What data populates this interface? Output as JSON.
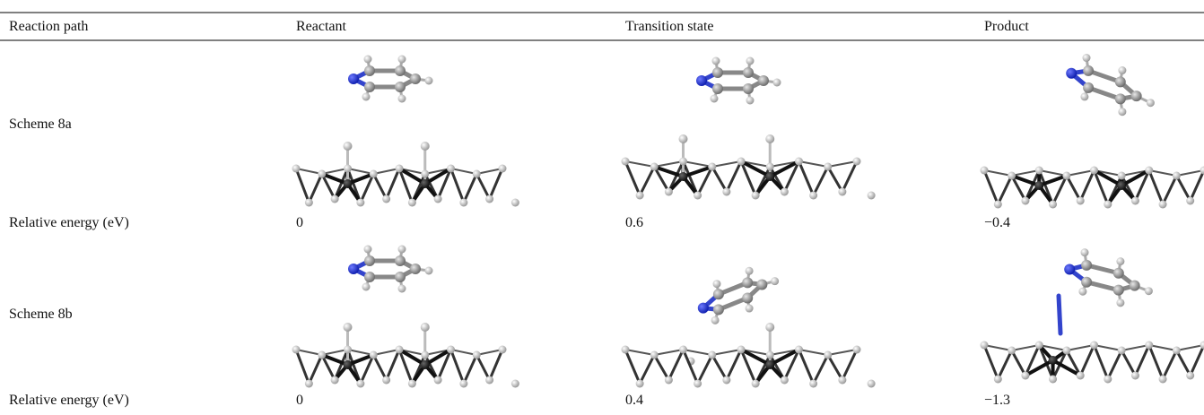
{
  "table": {
    "header": [
      "Reaction path",
      "Reactant",
      "Transition state",
      "Product"
    ],
    "rows": [
      [
        "Scheme 8a"
      ],
      [
        "Relative energy (eV)",
        "0",
        "0.6",
        "−0.4"
      ],
      [
        "Scheme 8b"
      ],
      [
        "Relative energy (eV)",
        "0",
        "0.4",
        "−1.3"
      ]
    ]
  }
}
